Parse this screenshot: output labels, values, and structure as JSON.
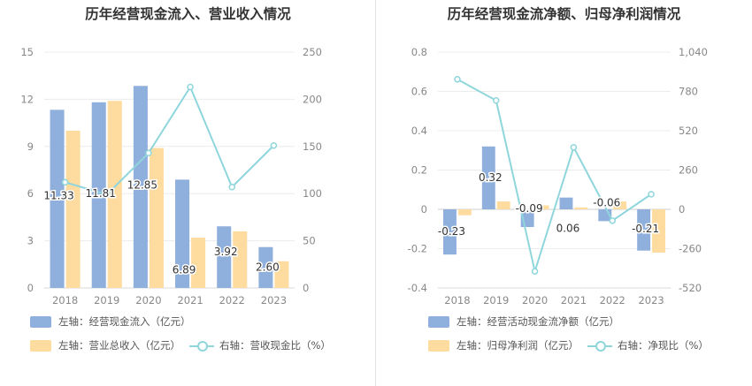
{
  "chart_data": [
    {
      "type": "bar",
      "title": "历年经营现金流入、营业收入情况",
      "categories": [
        "2018",
        "2019",
        "2020",
        "2021",
        "2022",
        "2023"
      ],
      "y_left": {
        "ticks": [
          0,
          3,
          6,
          9,
          12,
          15
        ],
        "tick_labels": [
          "0",
          "3",
          "6",
          "9",
          "12",
          "15"
        ],
        "range": [
          0,
          15
        ]
      },
      "y_right": {
        "ticks": [
          0,
          50,
          100,
          150,
          200,
          250
        ],
        "tick_labels": [
          "0",
          "50",
          "100",
          "150",
          "200",
          "250"
        ],
        "range": [
          0,
          250
        ]
      },
      "series": [
        {
          "name": "左轴：经营现金流入（亿元）",
          "kind": "bar",
          "axis": "left",
          "color": "#8fafdd",
          "values": [
            11.33,
            11.81,
            12.85,
            6.89,
            3.92,
            2.6
          ],
          "labels": [
            "11.33",
            "11.81",
            "12.85",
            "6.89",
            "3.92",
            "2.60"
          ]
        },
        {
          "name": "左轴：营业总收入（亿元）",
          "kind": "bar",
          "axis": "left",
          "color": "#fedb9f",
          "values": [
            10.0,
            11.9,
            8.9,
            3.2,
            3.6,
            1.7
          ]
        },
        {
          "name": "右轴：营收现金比（%）",
          "kind": "line",
          "axis": "right",
          "color": "#8fd6dc",
          "values": [
            112,
            99,
            143,
            213,
            107,
            151
          ]
        }
      ],
      "legend_rows": [
        [
          "左轴：经营现金流入（亿元）"
        ],
        [
          "左轴：营业总收入（亿元）",
          "右轴：营收现金比（%）"
        ]
      ],
      "legend_position": "bottom-left",
      "grid": true
    },
    {
      "type": "bar",
      "title": "历年经营现金流净额、归母净利润情况",
      "categories": [
        "2018",
        "2019",
        "2020",
        "2021",
        "2022",
        "2023"
      ],
      "y_left": {
        "ticks": [
          -0.4,
          -0.2,
          0,
          0.2,
          0.4,
          0.6,
          0.8
        ],
        "tick_labels": [
          "-0.4",
          "-0.2",
          "0",
          "0.2",
          "0.4",
          "0.6",
          "0.8"
        ],
        "range": [
          -0.4,
          0.8
        ]
      },
      "y_right": {
        "ticks": [
          -520,
          -260,
          0,
          260,
          520,
          780,
          1040
        ],
        "tick_labels": [
          "-520",
          "-260",
          "0",
          "260",
          "520",
          "780",
          "1,040"
        ],
        "range": [
          -520,
          1040
        ]
      },
      "series": [
        {
          "name": "左轴：经营活动现金流净额（亿元）",
          "kind": "bar",
          "axis": "left",
          "color": "#8fafdd",
          "values": [
            -0.23,
            0.32,
            -0.09,
            0.06,
            -0.06,
            -0.21
          ],
          "labels": [
            "-0.23",
            "0.32",
            "-0.09",
            "0.06",
            "-0.06",
            "-0.21"
          ]
        },
        {
          "name": "左轴：归母净利润（亿元）",
          "kind": "bar",
          "axis": "left",
          "color": "#fedb9f",
          "values": [
            -0.03,
            0.04,
            0.02,
            0.01,
            0.04,
            -0.22
          ]
        },
        {
          "name": "右轴：净现比（%）",
          "kind": "line",
          "axis": "right",
          "color": "#8fd6dc",
          "values": [
            860,
            720,
            -410,
            410,
            -75,
            100
          ]
        }
      ],
      "legend_rows": [
        [
          "左轴：经营活动现金流净额（亿元）"
        ],
        [
          "左轴：归母净利润（亿元）",
          "右轴：净现比（%）"
        ]
      ],
      "legend_position": "bottom-left",
      "grid": true
    }
  ]
}
